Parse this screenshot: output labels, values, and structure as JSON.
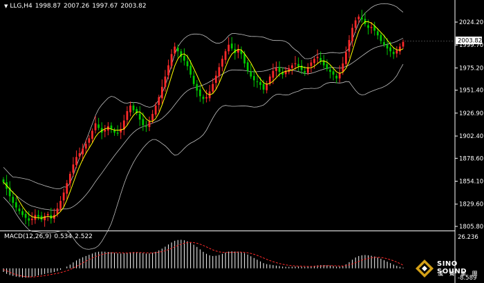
{
  "header": {
    "symbol": "LLG,H4",
    "open": "1998.87",
    "high": "2007.26",
    "low": "1997.67",
    "close": "2003.82"
  },
  "price_axis": {
    "labels": [
      "2024.20",
      "1999.70",
      "1975.20",
      "1951.40",
      "1926.90",
      "1902.40",
      "1878.60",
      "1854.10",
      "1829.60",
      "1805.80"
    ],
    "current_price": "2003.82"
  },
  "macd": {
    "label": "MACD(12,26,9)",
    "main_value": "0.534",
    "signal_value": "2.522",
    "axis_max": "26.236",
    "axis_min": "-8.589"
  },
  "logo": {
    "text": "SINO SOUND",
    "sub": "漢 聲 集 團"
  },
  "colors": {
    "background": "#000000",
    "bull_candle": "#ff2a2a",
    "bear_candle": "#00c800",
    "fast_ma": "#ffff00",
    "bands": "#c0c0c0",
    "macd_hist": "#ffffff",
    "macd_signal": "#ff2a2a"
  },
  "chart_data": {
    "type": "candlestick",
    "timeframe": "H4",
    "ylim": [
      1805.8,
      2040
    ],
    "macd_ylim": [
      -8.589,
      26.236
    ],
    "closes": [
      1853,
      1846,
      1838,
      1831,
      1826,
      1822,
      1818,
      1815,
      1812,
      1814,
      1818,
      1816,
      1813,
      1817,
      1819,
      1814,
      1818,
      1825,
      1833,
      1842,
      1852,
      1862,
      1872,
      1880,
      1884,
      1889,
      1894,
      1900,
      1908,
      1916,
      1911,
      1906,
      1909,
      1913,
      1910,
      1906,
      1905,
      1910,
      1919,
      1929,
      1935,
      1930,
      1927,
      1920,
      1914,
      1912,
      1918,
      1926,
      1935,
      1944,
      1955,
      1966,
      1978,
      1990,
      1998,
      1993,
      1987,
      1983,
      1977,
      1968,
      1958,
      1951,
      1945,
      1942,
      1944,
      1950,
      1958,
      1967,
      1976,
      1985,
      1993,
      2000,
      1996,
      1991,
      1995,
      1990,
      1980,
      1972,
      1966,
      1962,
      1960,
      1957,
      1952,
      1958,
      1966,
      1972,
      1975,
      1971,
      1968,
      1972,
      1975,
      1978,
      1980,
      1977,
      1973,
      1970,
      1976,
      1981,
      1985,
      1987,
      1983,
      1978,
      1974,
      1971,
      1968,
      1964,
      1970,
      1980,
      1992,
      2005,
      2018,
      2026,
      2030,
      2027,
      2022,
      2018,
      2019,
      2015,
      2010,
      2004,
      2000,
      1996,
      1993,
      1990,
      1994,
      1998,
      2003
    ],
    "macd_hist": [
      -3,
      -4.5,
      -5.5,
      -6.2,
      -6.8,
      -7.2,
      -7.5,
      -7.6,
      -7.4,
      -7,
      -6.4,
      -5.8,
      -5.2,
      -4.6,
      -4,
      -3.6,
      -3,
      -2.2,
      -1.2,
      0,
      1.4,
      3,
      4.8,
      6.4,
      7.8,
      9,
      10,
      11,
      12,
      13,
      13.5,
      13.6,
      13.5,
      13.3,
      13,
      12.6,
      12.2,
      12,
      12.2,
      12.6,
      13,
      13.2,
      13.2,
      12.9,
      12.4,
      12,
      12.1,
      12.6,
      13.4,
      14.6,
      16,
      17.6,
      19.4,
      21,
      22.4,
      23,
      23.2,
      22.8,
      22,
      20.8,
      19.2,
      17.4,
      15.4,
      13.4,
      11.8,
      10.6,
      10,
      10.2,
      10.8,
      11.8,
      12.8,
      13.6,
      13.8,
      13.6,
      13.6,
      13.2,
      12.4,
      11.2,
      9.8,
      8.4,
      7,
      5.6,
      4.2,
      3.4,
      3,
      2.6,
      2.2,
      1.8,
      1.4,
      1.2,
      1.2,
      1.3,
      1.4,
      1.4,
      1.3,
      1.1,
      1.2,
      1.5,
      2,
      2.4,
      2.6,
      2.6,
      2.4,
      2.2,
      1.8,
      1.4,
      1.4,
      2,
      3.2,
      5,
      7,
      8.8,
      10,
      10.6,
      10.8,
      10.6,
      10.2,
      9.6,
      8.8,
      7.8,
      6.6,
      5.4,
      4.2,
      3,
      2,
      1.2,
      0.534
    ],
    "macd_signal": [
      -1,
      -2,
      -3.2,
      -4.3,
      -5.2,
      -5.9,
      -6.4,
      -6.8,
      -7,
      -7,
      -6.9,
      -6.6,
      -6.3,
      -5.9,
      -5.5,
      -5,
      -4.6,
      -4.1,
      -3.5,
      -2.8,
      -2,
      -1,
      0.2,
      1.6,
      3,
      4.4,
      5.8,
      7.1,
      8.4,
      9.5,
      10.5,
      11.3,
      11.9,
      12.3,
      12.6,
      12.7,
      12.7,
      12.6,
      12.5,
      12.5,
      12.6,
      12.7,
      12.8,
      12.8,
      12.7,
      12.6,
      12.5,
      12.5,
      12.7,
      13.1,
      13.6,
      14.3,
      15.2,
      16.3,
      17.5,
      18.6,
      19.6,
      20.4,
      20.9,
      21.1,
      20.9,
      20.4,
      19.6,
      18.6,
      17.4,
      16.2,
      15,
      14.1,
      13.4,
      13,
      12.9,
      12.9,
      13,
      13.1,
      13.2,
      13.2,
      13,
      12.6,
      12.1,
      11.4,
      10.5,
      9.5,
      8.4,
      7.3,
      6.3,
      5.4,
      4.6,
      3.9,
      3.3,
      2.8,
      2.4,
      2.1,
      1.9,
      1.8,
      1.7,
      1.6,
      1.5,
      1.5,
      1.6,
      1.7,
      1.9,
      2,
      2.1,
      2.2,
      2.1,
      2,
      1.9,
      1.9,
      2.2,
      2.8,
      3.6,
      4.6,
      5.6,
      6.6,
      7.4,
      8.1,
      8.6,
      8.9,
      9,
      8.8,
      8.4,
      7.8,
      7,
      6.1,
      5.1,
      3.9,
      2.522
    ]
  }
}
